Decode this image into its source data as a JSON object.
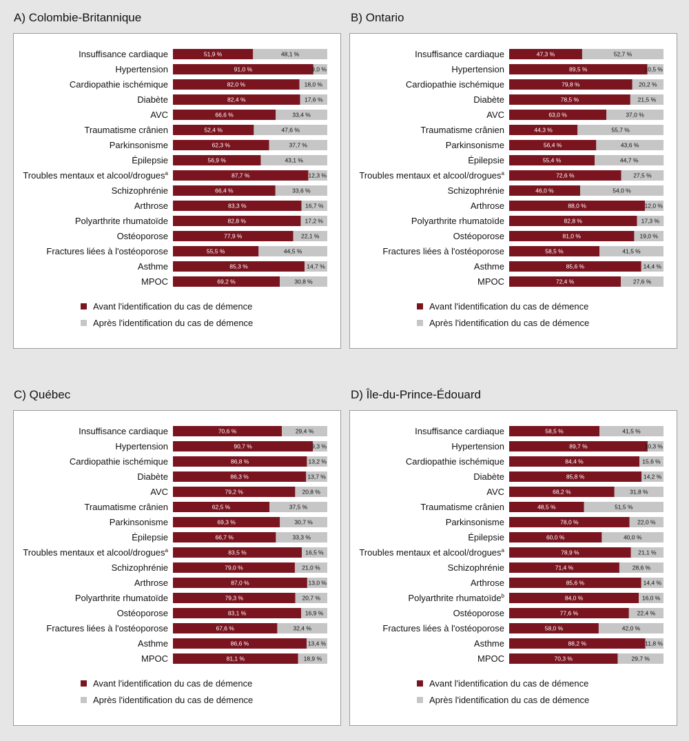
{
  "colors": {
    "before": "#7a1520",
    "after": "#c6c6c6",
    "before_text": "#ffffff",
    "after_text": "#111111"
  },
  "chart_data": [
    {
      "type": "bar",
      "stacked": "horizontal-100",
      "title": "A) Colombie-Britannique",
      "categories": [
        "Insuffisance cardiaque",
        "Hypertension",
        "Cardiopathie ischémique",
        "Diabète",
        "AVC",
        "Traumatisme crânien",
        "Parkinsonisme",
        "Épilepsie",
        "Troubles mentaux et alcool/drogues",
        "Schizophrénie",
        "Arthrose",
        "Polyarthrite rhumatoïde",
        "Ostéoporose",
        "Fractures liées à l'ostéoporose",
        "Asthme",
        "MPOC"
      ],
      "superscripts": [
        "",
        "",
        "",
        "",
        "",
        "",
        "",
        "",
        "a",
        "",
        "",
        "",
        "",
        "",
        "",
        ""
      ],
      "series": [
        {
          "name": "Avant l'identification du cas de démence",
          "values": [
            51.9,
            91.0,
            82.0,
            82.4,
            66.6,
            52.4,
            62.3,
            56.9,
            87.7,
            66.4,
            83.3,
            82.8,
            77.9,
            55.5,
            85.3,
            69.2
          ],
          "labels": [
            "51,9 %",
            "91,0 %",
            "82,0 %",
            "82,4 %",
            "66,6 %",
            "52,4 %",
            "62,3 %",
            "56,9 %",
            "87,7 %",
            "66,4 %",
            "83,3 %",
            "82,8 %",
            "77,9 %",
            "55,5 %",
            "85,3 %",
            "69,2 %"
          ]
        },
        {
          "name": "Après l'identification du cas de démence",
          "values": [
            48.1,
            9.0,
            18.0,
            17.6,
            33.4,
            47.6,
            37.7,
            43.1,
            12.3,
            33.6,
            16.7,
            17.2,
            22.1,
            44.5,
            14.7,
            30.8
          ],
          "labels": [
            "48,1 %",
            "9,0 %",
            "18,0 %",
            "17,6 %",
            "33,4 %",
            "47,6 %",
            "37,7 %",
            "43,1 %",
            "12,3 %",
            "33,6 %",
            "16,7 %",
            "17,2 %",
            "22,1 %",
            "44,5 %",
            "14,7 %",
            "30,8 %"
          ]
        }
      ]
    },
    {
      "type": "bar",
      "stacked": "horizontal-100",
      "title": "B) Ontario",
      "categories": [
        "Insuffisance cardiaque",
        "Hypertension",
        "Cardiopathie ischémique",
        "Diabète",
        "AVC",
        "Traumatisme crânien",
        "Parkinsonisme",
        "Épilepsie",
        "Troubles mentaux et alcool/drogues",
        "Schizophrénie",
        "Arthrose",
        "Polyarthrite rhumatoïde",
        "Ostéoporose",
        "Fractures liées à l'ostéoporose",
        "Asthme",
        "MPOC"
      ],
      "superscripts": [
        "",
        "",
        "",
        "",
        "",
        "",
        "",
        "",
        "a",
        "",
        "",
        "",
        "",
        "",
        "",
        ""
      ],
      "series": [
        {
          "name": "Avant l'identification du cas de démence",
          "values": [
            47.3,
            89.5,
            79.8,
            78.5,
            63.0,
            44.3,
            56.4,
            55.4,
            72.6,
            46.0,
            88.0,
            82.8,
            81.0,
            58.5,
            85.6,
            72.4
          ],
          "labels": [
            "47,3 %",
            "89,5 %",
            "79,8 %",
            "78,5 %",
            "63,0 %",
            "44,3 %",
            "56,4 %",
            "55,4 %",
            "72,6 %",
            "46,0 %",
            "88,0 %",
            "82,8 %",
            "81,0 %",
            "58,5 %",
            "85,6 %",
            "72,4 %"
          ]
        },
        {
          "name": "Après l'identification du cas de démence",
          "values": [
            52.7,
            10.5,
            20.2,
            21.5,
            37.0,
            55.7,
            43.6,
            44.7,
            27.5,
            54.0,
            12.0,
            17.3,
            19.0,
            41.5,
            14.4,
            27.6
          ],
          "labels": [
            "52,7 %",
            "10,5 %",
            "20,2 %",
            "21,5 %",
            "37,0 %",
            "55,7 %",
            "43,6 %",
            "44,7 %",
            "27,5 %",
            "54,0 %",
            "12,0 %",
            "17,3 %",
            "19,0 %",
            "41,5 %",
            "14,4 %",
            "27,6 %"
          ]
        }
      ]
    },
    {
      "type": "bar",
      "stacked": "horizontal-100",
      "title": "C) Québec",
      "categories": [
        "Insuffisance cardiaque",
        "Hypertension",
        "Cardiopathie ischémique",
        "Diabète",
        "AVC",
        "Traumatisme crânien",
        "Parkinsonisme",
        "Épilepsie",
        "Troubles mentaux et alcool/drogues",
        "Schizophrénie",
        "Arthrose",
        "Polyarthrite rhumatoïde",
        "Ostéoporose",
        "Fractures liées à l'ostéoporose",
        "Asthme",
        "MPOC"
      ],
      "superscripts": [
        "",
        "",
        "",
        "",
        "",
        "",
        "",
        "",
        "a",
        "",
        "",
        "",
        "",
        "",
        "",
        ""
      ],
      "series": [
        {
          "name": "Avant l'identification du cas de démence",
          "values": [
            70.6,
            90.7,
            86.8,
            86.3,
            79.2,
            62.5,
            69.3,
            66.7,
            83.5,
            79.0,
            87.0,
            79.3,
            83.1,
            67.6,
            86.6,
            81.1
          ],
          "labels": [
            "70,6 %",
            "90,7 %",
            "86,8 %",
            "86,3 %",
            "79,2 %",
            "62,5 %",
            "69,3 %",
            "66,7 %",
            "83,5 %",
            "79,0 %",
            "87,0 %",
            "79,3 %",
            "83,1 %",
            "67,6 %",
            "86,6 %",
            "81,1 %"
          ]
        },
        {
          "name": "Après l'identification du cas de démence",
          "values": [
            29.4,
            9.3,
            13.2,
            13.7,
            20.8,
            37.5,
            30.7,
            33.3,
            16.5,
            21.0,
            13.0,
            20.7,
            16.9,
            32.4,
            13.4,
            18.9
          ],
          "labels": [
            "29,4 %",
            "9,3 %",
            "13,2 %",
            "13,7 %",
            "20,8 %",
            "37,5 %",
            "30,7 %",
            "33,3 %",
            "16,5 %",
            "21,0 %",
            "13,0 %",
            "20,7 %",
            "16,9 %",
            "32,4 %",
            "13,4 %",
            "18,9 %"
          ]
        }
      ]
    },
    {
      "type": "bar",
      "stacked": "horizontal-100",
      "title": "D) Île-du-Prince-Édouard",
      "categories": [
        "Insuffisance cardiaque",
        "Hypertension",
        "Cardiopathie ischémique",
        "Diabète",
        "AVC",
        "Traumatisme crânien",
        "Parkinsonisme",
        "Épilepsie",
        "Troubles mentaux et alcool/drogues",
        "Schizophrénie",
        "Arthrose",
        "Polyarthrite rhumatoïde",
        "Ostéoporose",
        "Fractures liées à l'ostéoporose",
        "Asthme",
        "MPOC"
      ],
      "superscripts": [
        "",
        "",
        "",
        "",
        "",
        "",
        "",
        "",
        "a",
        "",
        "",
        "b",
        "",
        "",
        "",
        ""
      ],
      "series": [
        {
          "name": "Avant l'identification du cas de démence",
          "values": [
            58.5,
            89.7,
            84.4,
            85.8,
            68.2,
            48.5,
            78.0,
            60.0,
            78.9,
            71.4,
            85.6,
            84.0,
            77.6,
            58.0,
            88.2,
            70.3
          ],
          "labels": [
            "58,5 %",
            "89,7 %",
            "84,4 %",
            "85,8 %",
            "68,2 %",
            "48,5 %",
            "78,0 %",
            "60,0 %",
            "78,9 %",
            "71,4 %",
            "85,6 %",
            "84,0 %",
            "77,6 %",
            "58,0 %",
            "88,2 %",
            "70,3 %"
          ]
        },
        {
          "name": "Après l'identification du cas de démence",
          "values": [
            41.5,
            10.3,
            15.6,
            14.2,
            31.8,
            51.5,
            22.0,
            40.0,
            21.1,
            28.6,
            14.4,
            16.0,
            22.4,
            42.0,
            11.8,
            29.7
          ],
          "labels": [
            "41,5 %",
            "10,3 %",
            "15,6 %",
            "14,2 %",
            "31,8 %",
            "51,5 %",
            "22,0 %",
            "40,0 %",
            "21,1 %",
            "28,6 %",
            "14,4 %",
            "16,0 %",
            "22,4 %",
            "42,0 %",
            "11,8 %",
            "29,7 %"
          ]
        }
      ]
    }
  ]
}
